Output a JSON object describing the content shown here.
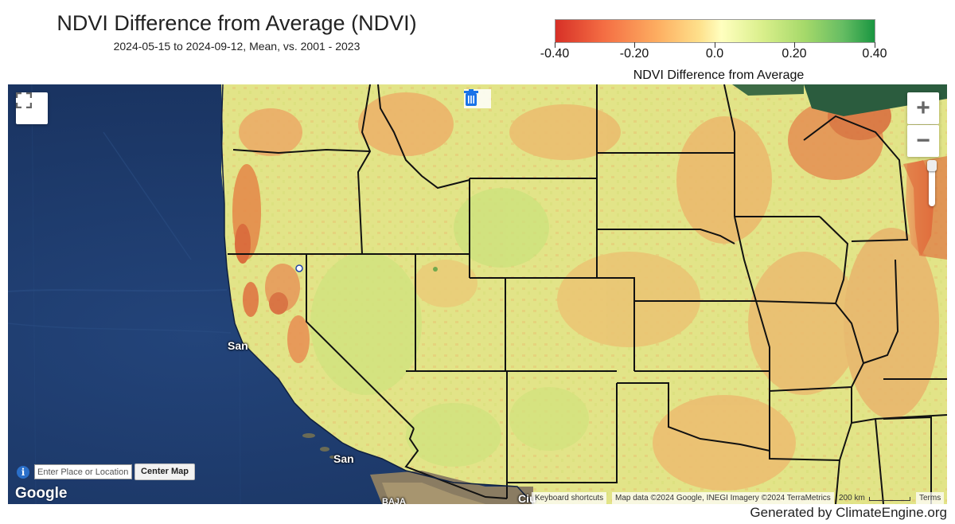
{
  "header": {
    "title": "NDVI Difference from Average (NDVI)",
    "subtitle": "2024-05-15 to 2024-09-12, Mean, vs. 2001 - 2023"
  },
  "legend": {
    "ticks": [
      "-0.40",
      "-0.20",
      "0.0",
      "0.20",
      "0.40"
    ],
    "title": "NDVI Difference from Average",
    "colors": [
      "#d73027",
      "#f78a52",
      "#fde6a4",
      "#c5e17c",
      "#1a9641"
    ]
  },
  "map": {
    "labels": {
      "sf": "San",
      "la": "San",
      "baja": "BAJA",
      "city": "Ciu"
    },
    "controls": {
      "fullscreen_icon": "fullscreen-icon",
      "zoom_in": "+",
      "zoom_out": "−",
      "delete_icon": "trash-icon"
    },
    "search": {
      "placeholder": "Enter Place or Location",
      "button": "Center Map",
      "info": "i"
    },
    "google_logo": "Google",
    "attribution": {
      "keyboard": "Keyboard shortcuts",
      "data": "Map data ©2024 Google, INEGI Imagery ©2024 TerraMetrics",
      "scale": "200 km",
      "terms": "Terms"
    },
    "colors": {
      "ocean": "#1d3a6a",
      "land_neutral": "#e3e58c",
      "land_negative": "#e9bd72",
      "land_strong_negative": "#e46a3c",
      "land_positive": "#c8e07a"
    }
  },
  "footer": {
    "text": "Generated by ClimateEngine.org"
  }
}
